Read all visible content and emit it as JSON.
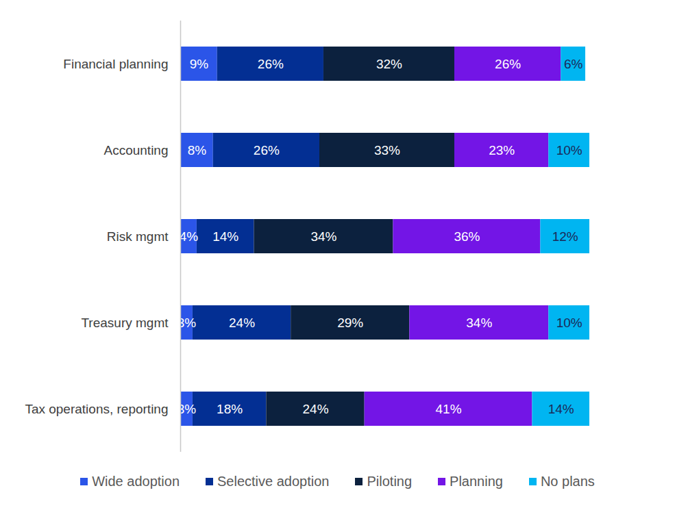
{
  "chart_data": {
    "type": "bar",
    "orientation": "horizontal",
    "stacked": true,
    "data_labels": true,
    "tick_labels": "y",
    "legend": "bottom",
    "categories": [
      "Financial planning",
      "Accounting",
      "Risk mgmt",
      "Treasury mgmt",
      "Tax operations, reporting"
    ],
    "xlim": [
      0,
      100
    ],
    "series": [
      {
        "name": "Wide adoption",
        "color": "#2b55e8",
        "values": [
          9,
          8,
          4,
          3,
          3
        ],
        "value_labels": [
          "9%",
          "8%",
          "4%",
          "3%",
          "3%"
        ]
      },
      {
        "name": "Selective adoption",
        "color": "#032f93",
        "values": [
          26,
          26,
          14,
          24,
          18
        ],
        "value_labels": [
          "26%",
          "26%",
          "14%",
          "24%",
          "18%"
        ]
      },
      {
        "name": "Piloting",
        "color": "#0c213e",
        "values": [
          32,
          33,
          34,
          29,
          24
        ],
        "value_labels": [
          "32%",
          "33%",
          "34%",
          "29%",
          "24%"
        ]
      },
      {
        "name": "Planning",
        "color": "#7315e6",
        "values": [
          26,
          23,
          36,
          34,
          41
        ],
        "value_labels": [
          "26%",
          "23%",
          "36%",
          "34%",
          "41%"
        ]
      },
      {
        "name": "No plans",
        "color": "#00b5f1",
        "values": [
          6,
          10,
          12,
          10,
          14
        ],
        "value_labels": [
          "6%",
          "10%",
          "12%",
          "10%",
          "14%"
        ]
      }
    ]
  }
}
